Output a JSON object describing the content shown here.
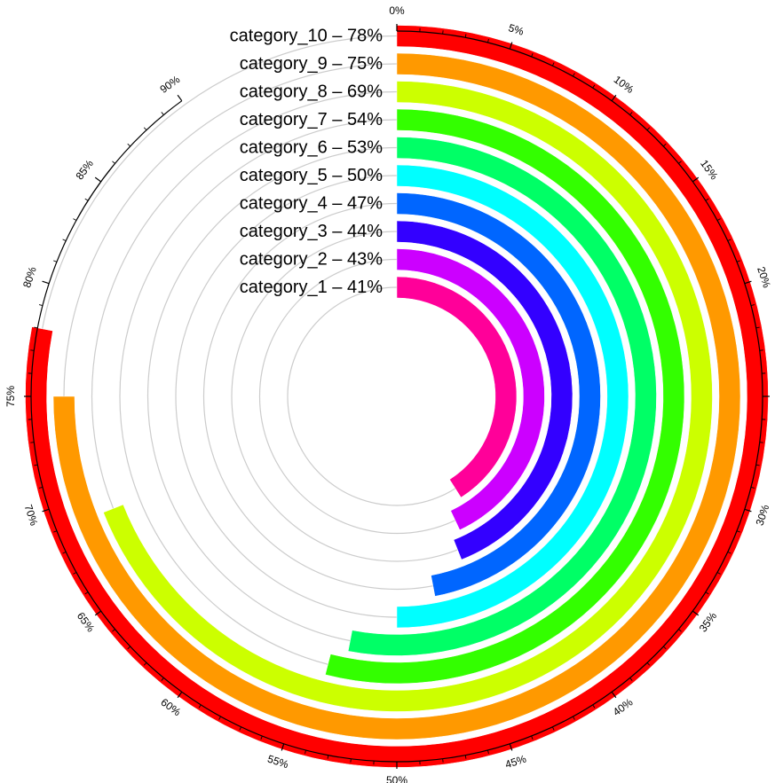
{
  "chart_data": {
    "type": "bar",
    "subtype": "radial-bar",
    "title": "",
    "categories": [
      "category_1",
      "category_2",
      "category_3",
      "category_4",
      "category_5",
      "category_6",
      "category_7",
      "category_8",
      "category_9",
      "category_10"
    ],
    "values": [
      41,
      43,
      44,
      47,
      50,
      53,
      54,
      69,
      75,
      78
    ],
    "labels": [
      "category_1 – 41%",
      "category_2 – 43%",
      "category_3 – 44%",
      "category_4 – 47%",
      "category_5 – 50%",
      "category_6 – 53%",
      "category_7 – 54%",
      "category_8 – 69%",
      "category_9 – 75%",
      "category_10 – 78%"
    ],
    "colors": [
      "#ff0099",
      "#cc00ff",
      "#3300ff",
      "#0066ff",
      "#00ffff",
      "#00ff66",
      "#33ff00",
      "#ccff00",
      "#ff9900",
      "#ff0000"
    ],
    "axis_range": [
      0,
      100
    ],
    "axis_unit": "%",
    "major_ticks": [
      0,
      5,
      10,
      15,
      20,
      25,
      30,
      35,
      40,
      45,
      50,
      55,
      60,
      65,
      70,
      75,
      80,
      85,
      90
    ],
    "major_tick_labels": [
      "0%",
      "5%",
      "10%",
      "15%",
      "20%",
      "25%",
      "30%",
      "35%",
      "40%",
      "45%",
      "50%",
      "55%",
      "60%",
      "65%",
      "70%",
      "75%",
      "80%",
      "85%",
      "90%"
    ],
    "minor_tick_step": 1,
    "axis_max_drawn": 90,
    "grid": true,
    "direction": "clockwise",
    "start": "top",
    "legend": "none"
  }
}
